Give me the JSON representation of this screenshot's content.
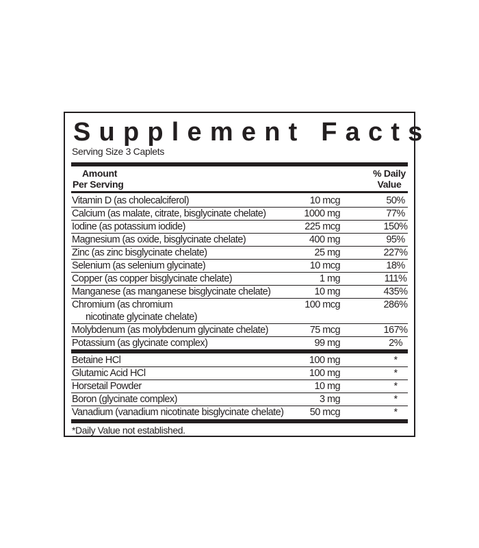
{
  "title": "Supplement Facts",
  "serving_size": "Serving Size 3 Caplets",
  "header": {
    "amount_line1": "Amount",
    "amount_line2": "Per Serving",
    "dv_line1": "% Daily",
    "dv_line2": "Value"
  },
  "nutrients": [
    {
      "name": "Vitamin D (as cholecalciferol)",
      "amount": "10 mcg",
      "dv": "50%"
    },
    {
      "name": "Calcium (as malate, citrate, bisglycinate chelate)",
      "amount": "1000 mg",
      "dv": "77%"
    },
    {
      "name": "Iodine (as potassium iodide)",
      "amount": "225 mcg",
      "dv": "150%"
    },
    {
      "name": "Magnesium (as oxide, bisglycinate chelate)",
      "amount": "400 mg",
      "dv": "95%"
    },
    {
      "name": "Zinc (as zinc bisglycinate chelate)",
      "amount": "25 mg",
      "dv": "227%"
    },
    {
      "name": "Selenium (as selenium glycinate)",
      "amount": "10 mcg",
      "dv": "18%"
    },
    {
      "name": "Copper (as copper bisglycinate chelate)",
      "amount": "1 mg",
      "dv": "111%"
    },
    {
      "name": "Manganese (as manganese bisglycinate chelate)",
      "amount": "10 mg",
      "dv": "435%"
    },
    {
      "name": "Chromium (as chromium",
      "name_cont": "nicotinate glycinate chelate)",
      "amount": "100 mcg",
      "dv": "286%"
    },
    {
      "name": "Molybdenum (as molybdenum glycinate chelate)",
      "amount": "75 mcg",
      "dv": "167%"
    },
    {
      "name": "Potassium (as glycinate complex)",
      "amount": "99 mg",
      "dv": "2%"
    }
  ],
  "other_ingredients": [
    {
      "name": "Betaine HCl",
      "amount": "100 mg",
      "dv": "*"
    },
    {
      "name": "Glutamic Acid HCl",
      "amount": "100 mg",
      "dv": "*"
    },
    {
      "name": "Horsetail Powder",
      "amount": "10 mg",
      "dv": "*"
    },
    {
      "name": "Boron (glycinate complex)",
      "amount": "3 mg",
      "dv": "*"
    },
    {
      "name": "Vanadium (vanadium nicotinate bisglycinate chelate)",
      "amount": "50 mcg",
      "dv": "*"
    }
  ],
  "footnote": "*Daily Value not established."
}
